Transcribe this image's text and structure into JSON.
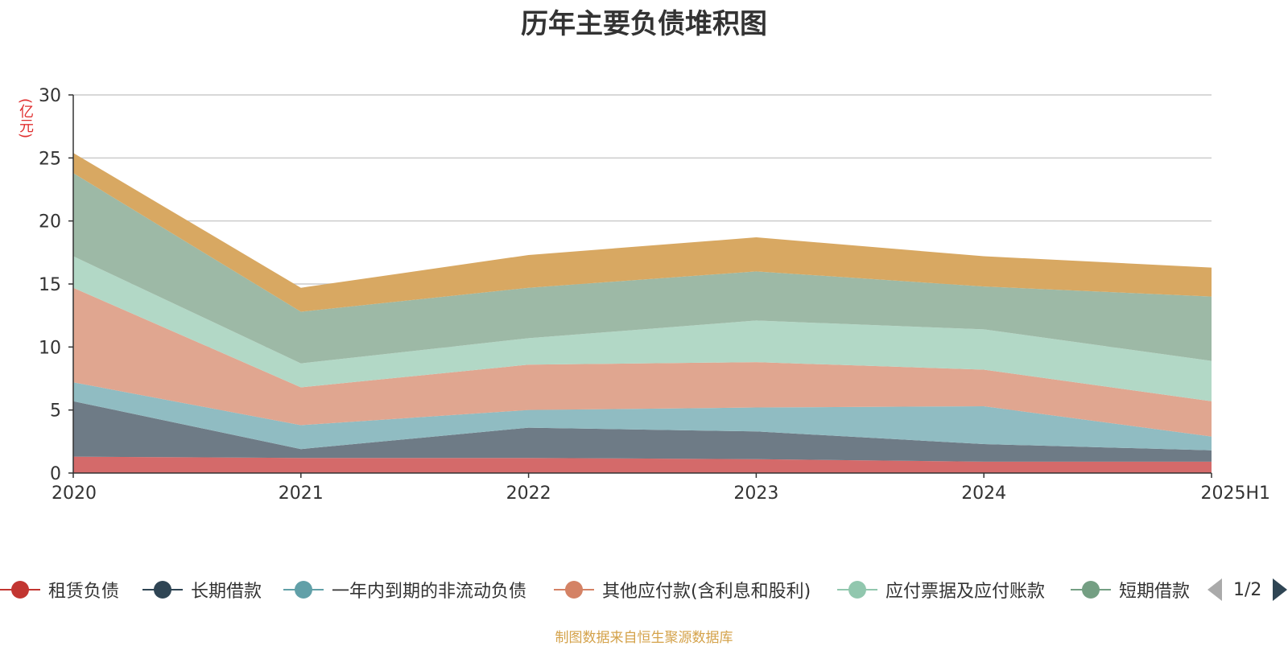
{
  "chart_data": {
    "type": "area",
    "stacked": true,
    "title": "历年主要负债堆积图",
    "unit_label": "(亿元)",
    "categories": [
      "2020",
      "2021",
      "2022",
      "2023",
      "2024",
      "2025H1"
    ],
    "ylim": [
      0,
      30
    ],
    "yticks": [
      0,
      5,
      10,
      15,
      20,
      25,
      30
    ],
    "grid": true,
    "legend_position": "bottom",
    "series": [
      {
        "name": "租赁负债",
        "color": "#c23531",
        "fill": "#d46a6a",
        "values": [
          1.3,
          1.2,
          1.2,
          1.1,
          0.9,
          0.9
        ]
      },
      {
        "name": "长期借款",
        "color": "#2f4554",
        "fill": "#6e7b86",
        "values": [
          4.4,
          0.7,
          2.4,
          2.2,
          1.4,
          0.9
        ]
      },
      {
        "name": "一年内到期的非流动负债",
        "color": "#61a0a8",
        "fill": "#90bcc2",
        "values": [
          1.5,
          1.9,
          1.4,
          1.9,
          3.0,
          1.1
        ]
      },
      {
        "name": "其他应付款(含利息和股利)",
        "color": "#d48265",
        "fill": "#e0a690",
        "values": [
          7.5,
          3.0,
          3.6,
          3.6,
          2.9,
          2.8
        ]
      },
      {
        "name": "应付票据及应付账款",
        "color": "#91c7ae",
        "fill": "#b2d8c6",
        "values": [
          2.5,
          1.9,
          2.1,
          3.3,
          3.2,
          3.2
        ]
      },
      {
        "name": "短期借款",
        "color": "#749f83",
        "fill": "#9db9a6",
        "values": [
          6.6,
          4.1,
          4.0,
          3.9,
          3.4,
          5.1
        ]
      },
      {
        "name": "",
        "color": "#ca8622",
        "fill": "#d8a862",
        "values": [
          1.6,
          1.9,
          2.6,
          2.7,
          2.4,
          2.3
        ]
      }
    ]
  },
  "legend": {
    "page_text": "1/2"
  },
  "footer": {
    "source_text": "制图数据来自恒生聚源数据库"
  }
}
